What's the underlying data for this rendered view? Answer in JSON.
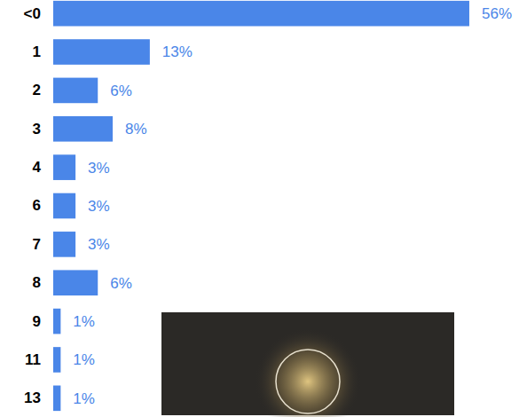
{
  "chart_data": {
    "type": "bar",
    "orientation": "horizontal",
    "categories": [
      "<0",
      "1",
      "2",
      "3",
      "4",
      "6",
      "7",
      "8",
      "9",
      "11",
      "13"
    ],
    "values": [
      56,
      13,
      6,
      8,
      3,
      3,
      3,
      6,
      1,
      1,
      1
    ],
    "value_labels": [
      "56%",
      "13%",
      "6%",
      "8%",
      "3%",
      "3%",
      "3%",
      "6%",
      "1%",
      "1%",
      "1%"
    ],
    "color": "#4a86e8",
    "xlim": [
      0,
      56
    ],
    "data_labels": true,
    "tick_labels": "y",
    "grid": false
  }
}
